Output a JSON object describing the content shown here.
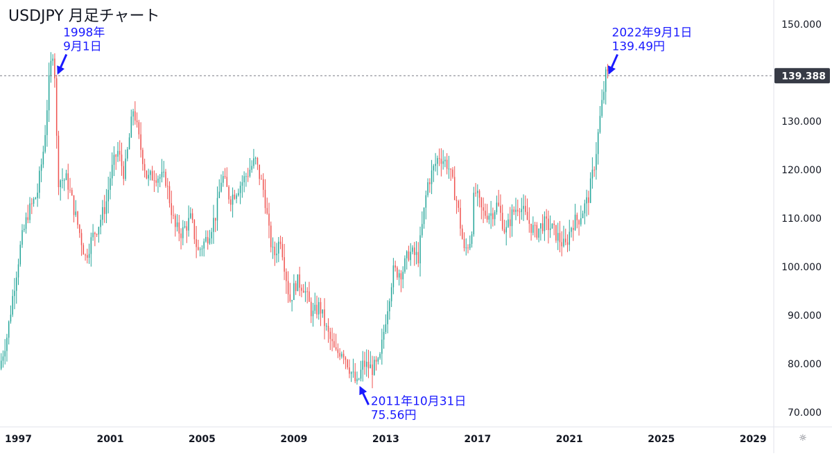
{
  "chart_data": {
    "type": "candlestick",
    "title": "USDJPY 月足チャート",
    "ylim": [
      67,
      155
    ],
    "xlim": [
      1996.2,
      2029.9
    ],
    "y_ticks": [
      "70.000",
      "80.000",
      "90.000",
      "100.000",
      "110.000",
      "120.000",
      "130.000",
      "150.000"
    ],
    "x_ticks": [
      {
        "x": 1997,
        "label": "1997"
      },
      {
        "x": 2001,
        "label": "2001"
      },
      {
        "x": 2005,
        "label": "2005"
      },
      {
        "x": 2009,
        "label": "2009"
      },
      {
        "x": 2013,
        "label": "2013"
      },
      {
        "x": 2017,
        "label": "2017"
      },
      {
        "x": 2021,
        "label": "2021"
      },
      {
        "x": 2025,
        "label": "2025"
      },
      {
        "x": 2029,
        "label": "2029"
      }
    ],
    "current_price": {
      "value": 139.388,
      "label": "139.388"
    },
    "colors": {
      "up": "#26a69a",
      "down": "#ef5350",
      "annotation": "#1a1aff",
      "price_label_bg": "#363a45",
      "grid_line": "#787b86"
    },
    "grid": false,
    "price_path": [
      [
        1996.25,
        79
      ],
      [
        1996.6,
        86
      ],
      [
        1996.9,
        96
      ],
      [
        1997.2,
        105
      ],
      [
        1997.5,
        111
      ],
      [
        1997.9,
        115
      ],
      [
        1998.2,
        125
      ],
      [
        1998.45,
        140
      ],
      [
        1998.6,
        145
      ],
      [
        1998.67,
        139.5
      ],
      [
        1998.8,
        118
      ],
      [
        1999.2,
        118
      ],
      [
        1999.5,
        112
      ],
      [
        1999.75,
        107
      ],
      [
        2000.0,
        102
      ],
      [
        2000.3,
        106
      ],
      [
        2000.6,
        109
      ],
      [
        2000.9,
        113
      ],
      [
        2001.1,
        119
      ],
      [
        2001.4,
        124
      ],
      [
        2001.7,
        119
      ],
      [
        2002.1,
        133
      ],
      [
        2002.3,
        127
      ],
      [
        2002.7,
        118
      ],
      [
        2003.0,
        119
      ],
      [
        2003.5,
        118
      ],
      [
        2003.9,
        108
      ],
      [
        2004.2,
        107
      ],
      [
        2004.6,
        110
      ],
      [
        2004.9,
        103
      ],
      [
        2005.3,
        106
      ],
      [
        2005.7,
        111
      ],
      [
        2005.95,
        119
      ],
      [
        2006.3,
        114
      ],
      [
        2006.6,
        116
      ],
      [
        2006.9,
        118
      ],
      [
        2007.4,
        122
      ],
      [
        2007.8,
        115
      ],
      [
        2008.0,
        107
      ],
      [
        2008.2,
        102
      ],
      [
        2008.5,
        106
      ],
      [
        2008.9,
        93
      ],
      [
        2009.2,
        97
      ],
      [
        2009.5,
        96
      ],
      [
        2009.9,
        90
      ],
      [
        2010.2,
        92
      ],
      [
        2010.5,
        87
      ],
      [
        2010.9,
        82
      ],
      [
        2011.2,
        83
      ],
      [
        2011.6,
        78
      ],
      [
        2011.83,
        75.56
      ],
      [
        2012.1,
        80
      ],
      [
        2012.5,
        79
      ],
      [
        2012.8,
        80
      ],
      [
        2013.1,
        90
      ],
      [
        2013.4,
        99
      ],
      [
        2013.8,
        99
      ],
      [
        2014.1,
        103
      ],
      [
        2014.5,
        102
      ],
      [
        2014.9,
        117
      ],
      [
        2015.4,
        123
      ],
      [
        2015.8,
        121
      ],
      [
        2016.2,
        113
      ],
      [
        2016.5,
        103
      ],
      [
        2016.8,
        106
      ],
      [
        2016.95,
        116
      ],
      [
        2017.3,
        111
      ],
      [
        2017.7,
        111
      ],
      [
        2017.95,
        113
      ],
      [
        2018.3,
        107
      ],
      [
        2018.6,
        111
      ],
      [
        2018.9,
        113
      ],
      [
        2019.2,
        110
      ],
      [
        2019.6,
        107
      ],
      [
        2019.95,
        109
      ],
      [
        2020.3,
        108
      ],
      [
        2020.6,
        106
      ],
      [
        2020.9,
        104
      ],
      [
        2021.2,
        109
      ],
      [
        2021.5,
        110
      ],
      [
        2021.9,
        114
      ],
      [
        2022.2,
        122
      ],
      [
        2022.4,
        130
      ],
      [
        2022.67,
        139.49
      ]
    ]
  },
  "annotations": [
    {
      "lines": [
        "1998年",
        "9月1日"
      ],
      "x": 1998.67,
      "y": 139.5,
      "text_at": [
        1998.95,
        147.5
      ]
    },
    {
      "lines": [
        "2022年9月1日",
        "139.49円"
      ],
      "x": 2022.67,
      "y": 139.49,
      "text_at": [
        2022.85,
        147.5
      ]
    },
    {
      "lines": [
        "2011年10月31日",
        "75.56円"
      ],
      "x": 2011.83,
      "y": 75.56,
      "text_at": [
        2012.35,
        71.5
      ]
    }
  ]
}
